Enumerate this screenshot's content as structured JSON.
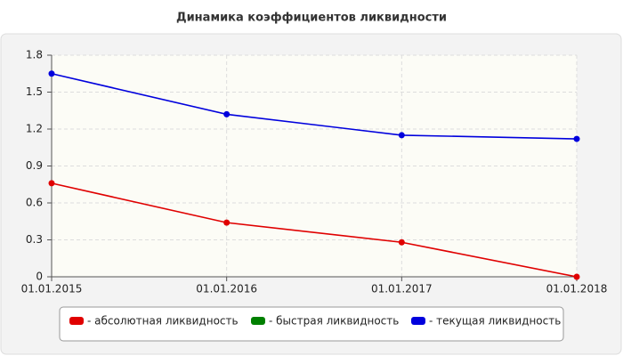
{
  "chart_data": {
    "type": "line",
    "title": "Динамика коэффициентов ликвидности",
    "categories": [
      "01.01.2015",
      "01.01.2016",
      "01.01.2017",
      "01.01.2018"
    ],
    "series": [
      {
        "name": "- абсолютная ликвидность",
        "color": "#e00000",
        "values": [
          0.76,
          0.44,
          0.28,
          0.0
        ]
      },
      {
        "name": "- быстрая ликвидность",
        "color": "#008000",
        "values": [
          null,
          null,
          null,
          null
        ]
      },
      {
        "name": "- текущая ликвидность",
        "color": "#0000dd",
        "values": [
          1.65,
          1.32,
          1.15,
          1.12
        ]
      }
    ],
    "ylim": [
      0,
      1.8
    ],
    "yticks": [
      0,
      0.3,
      0.6,
      0.9,
      1.2,
      1.5,
      1.8
    ],
    "grid": true
  }
}
